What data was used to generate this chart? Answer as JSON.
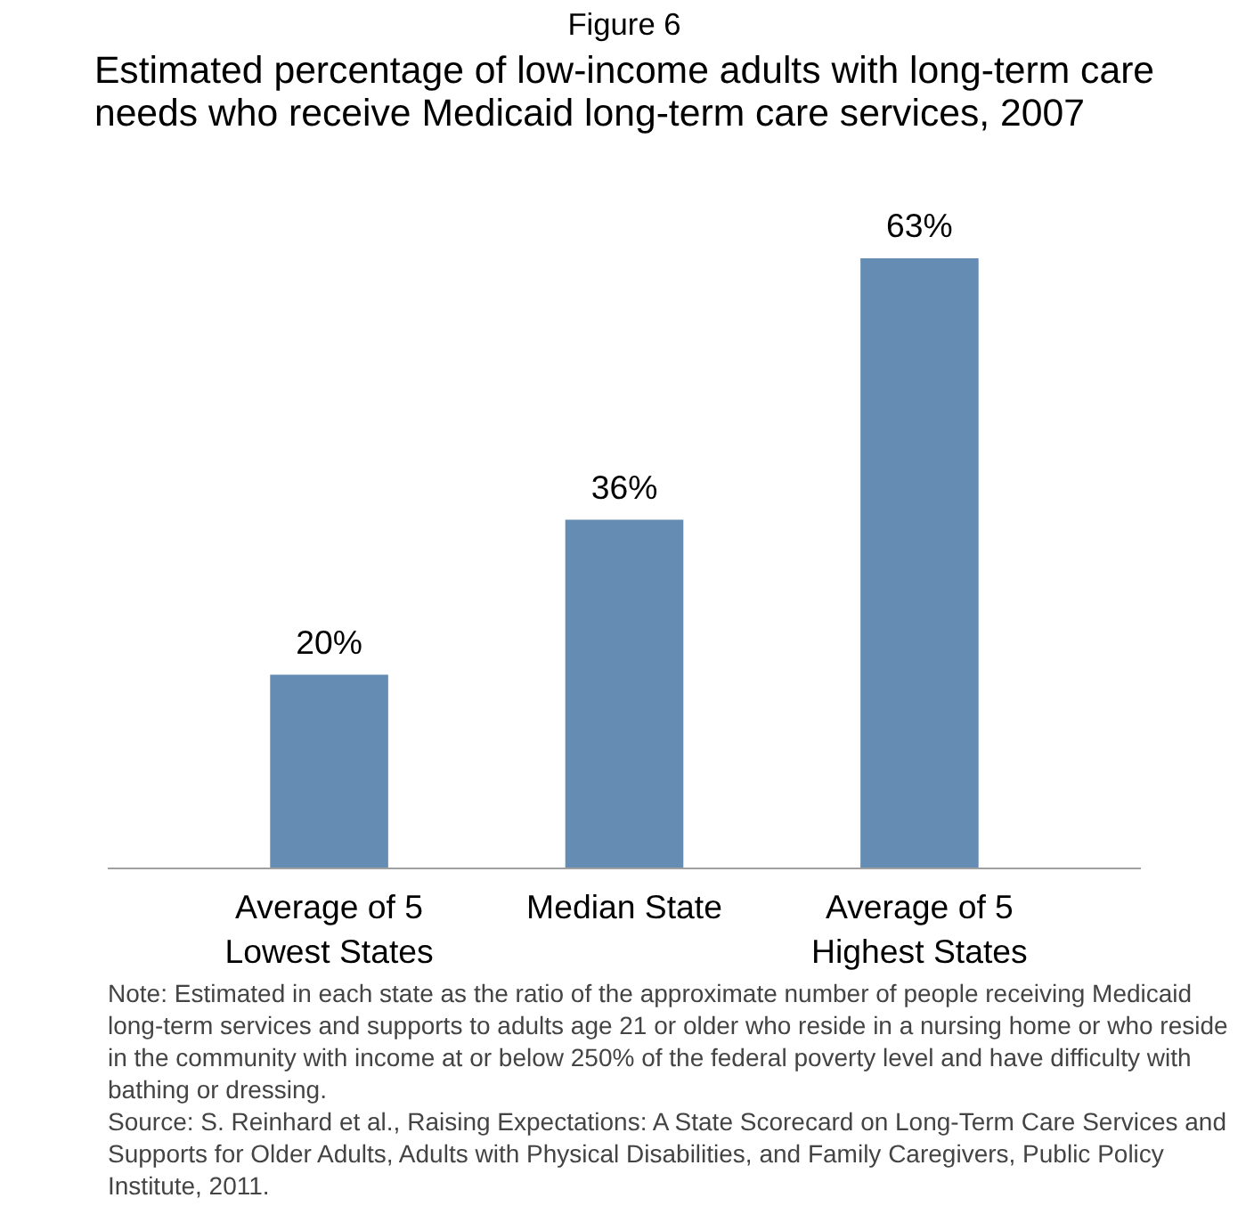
{
  "chart_data": {
    "type": "bar",
    "title": "Figure 6",
    "subtitle": "Estimated percentage of low-income adults with long-term care needs who receive Medicaid long-term care services, 2007",
    "categories": [
      "Average of 5 Lowest States",
      "Median State",
      "Average of 5 Highest States"
    ],
    "values": [
      20,
      36,
      63
    ],
    "value_labels": [
      "20%",
      "36%",
      "63%"
    ],
    "color": "#658cb3",
    "grid": false,
    "annotations": [
      "Note:  Estimated in each state as the ratio of the approximate number of people receiving Medicaid long-term services and supports to adults age 21 or older who reside in a nursing home or who reside in the community with income at or below 250% of the federal poverty level and have difficulty with bathing or dressing.",
      "Source: S. Reinhard et al., Raising Expectations: A State Scorecard on Long-Term Care Services and Supports for Older Adults, Adults with Physical Disabilities, and Family Caregivers, Public Policy Institute, 2011."
    ]
  }
}
